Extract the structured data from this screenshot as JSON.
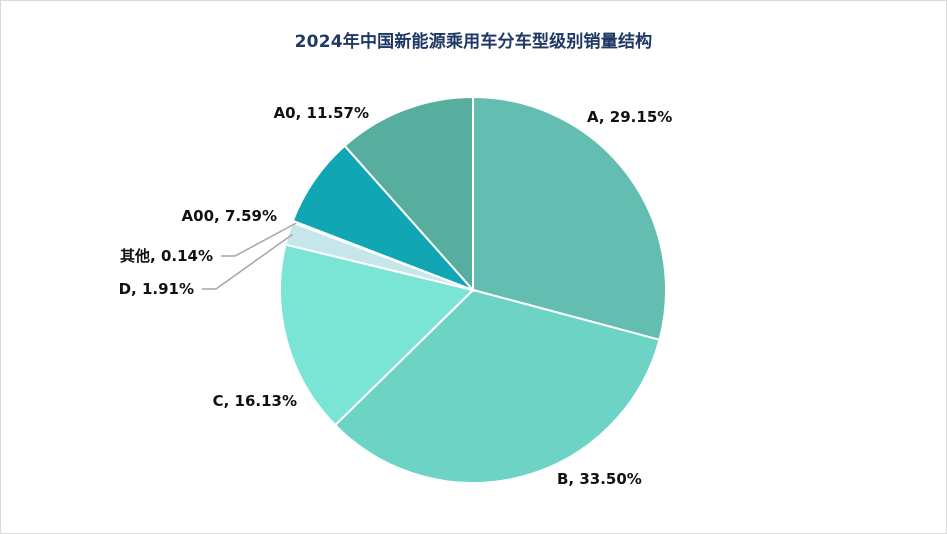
{
  "chart_data": {
    "type": "pie",
    "title": "2024年中国新能源乘用车分车型级别销量结构",
    "start_angle_deg": 90,
    "direction": "clockwise",
    "slices": [
      {
        "name": "A",
        "value": 29.15,
        "label": "A, 29.15%",
        "color": "#63bdb0"
      },
      {
        "name": "B",
        "value": 33.5,
        "label": "B, 33.50%",
        "color": "#6dd3c4"
      },
      {
        "name": "C",
        "value": 16.13,
        "label": "C, 16.13%",
        "color": "#7ae5d4"
      },
      {
        "name": "D",
        "value": 1.91,
        "label": "D, 1.91%",
        "color": "#c5e6ea"
      },
      {
        "name": "其他",
        "value": 0.14,
        "label": "其他, 0.14%",
        "color": "#0ea7b5"
      },
      {
        "name": "A00",
        "value": 7.59,
        "label": "A00, 7.59%",
        "color": "#10a6b3"
      },
      {
        "name": "A0",
        "value": 11.57,
        "label": "A0, 11.57%",
        "color": "#57ad9e"
      }
    ]
  }
}
